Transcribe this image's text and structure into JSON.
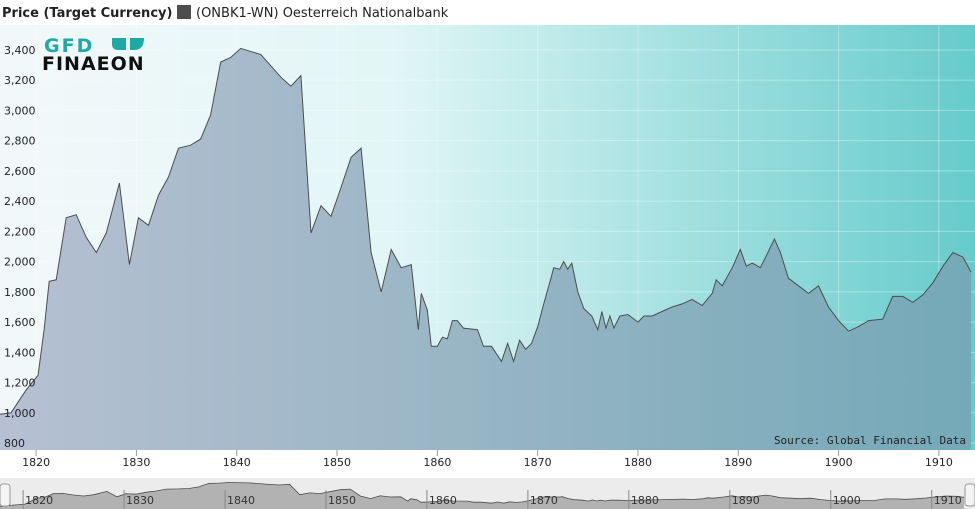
{
  "chart_data": {
    "type": "area",
    "title": "Price (Target Currency)",
    "source": "Source: Global Financial Data",
    "logo": {
      "top": "GFD",
      "bottom": "FINAEON"
    },
    "legend": "top-left",
    "grid": true,
    "xlim": [
      1816.4,
      1913.6
    ],
    "ylim": [
      754,
      3565
    ],
    "xticks": [
      1820,
      1830,
      1840,
      1850,
      1860,
      1870,
      1880,
      1890,
      1900,
      1910
    ],
    "yticks": [
      800,
      {
        "value": 1000,
        "label": "1,000"
      },
      {
        "value": 1200,
        "label": "1,200"
      },
      {
        "value": 1400,
        "label": "1,400"
      },
      {
        "value": 1600,
        "label": "1,600"
      },
      {
        "value": 1800,
        "label": "1,800"
      },
      {
        "value": 2000,
        "label": "2,000"
      },
      {
        "value": 2200,
        "label": "2,200"
      },
      {
        "value": 2400,
        "label": "2,400"
      },
      {
        "value": 2600,
        "label": "2,600"
      },
      {
        "value": 2800,
        "label": "2,800"
      },
      {
        "value": 3000,
        "label": "3,000"
      },
      {
        "value": 3200,
        "label": "3,200"
      },
      {
        "value": 3400,
        "label": "3,400"
      }
    ],
    "navigator_xlim": [
      1818.9,
      1913.1
    ],
    "x": [
      1816.4,
      1817.5,
      1818,
      1819,
      1820.2,
      1820.8,
      1821.3,
      1822,
      1823,
      1824,
      1825,
      1826,
      1827,
      1828.3,
      1829.3,
      1830.2,
      1831.2,
      1832.2,
      1833.2,
      1834.2,
      1835.4,
      1836.4,
      1837.4,
      1838.4,
      1839.4,
      1840.4,
      1842.4,
      1844.4,
      1845.4,
      1846.4,
      1847.4,
      1848.4,
      1849.4,
      1850.4,
      1851.4,
      1852.4,
      1853.4,
      1854.4,
      1855.4,
      1856.4,
      1857.4,
      1858.1,
      1858.4,
      1859,
      1859.4,
      1860,
      1860.5,
      1861,
      1861.5,
      1862,
      1862.6,
      1864,
      1864.6,
      1865.4,
      1866.4,
      1867,
      1867.6,
      1868.2,
      1868.8,
      1869.4,
      1870,
      1870.6,
      1871.2,
      1871.6,
      1872.2,
      1872.6,
      1873,
      1873.4,
      1874,
      1874.6,
      1875.4,
      1876,
      1876.4,
      1876.8,
      1877.2,
      1877.6,
      1878.2,
      1879,
      1880,
      1880.6,
      1881.4,
      1882.4,
      1883.4,
      1884.4,
      1885.4,
      1886.4,
      1887.4,
      1887.8,
      1888.4,
      1889.4,
      1890.2,
      1890.8,
      1891.4,
      1892.2,
      1892.8,
      1893.6,
      1894.2,
      1895,
      1896,
      1897,
      1898,
      1899,
      1900,
      1901,
      1902,
      1903,
      1904.4,
      1905.4,
      1906.4,
      1907.4,
      1908.4,
      1909.4,
      1910.4,
      1911.4,
      1912.4,
      1913.2
    ],
    "series": [
      {
        "name": "(ONBK1-WN) Oesterreich Nationalbank",
        "color": "#4d4d4d",
        "values": [
          990,
          1000,
          1050,
          1150,
          1250,
          1550,
          1870,
          1880,
          2290,
          2310,
          2160,
          2060,
          2190,
          2520,
          1980,
          2290,
          2240,
          2440,
          2560,
          2750,
          2770,
          2810,
          2970,
          3320,
          3350,
          3410,
          3370,
          3220,
          3160,
          3230,
          2190,
          2370,
          2300,
          2490,
          2690,
          2750,
          2060,
          1800,
          2080,
          1960,
          1980,
          1550,
          1790,
          1680,
          1440,
          1440,
          1500,
          1490,
          1610,
          1610,
          1560,
          1550,
          1440,
          1440,
          1340,
          1460,
          1340,
          1480,
          1420,
          1460,
          1570,
          1720,
          1860,
          1960,
          1950,
          2000,
          1950,
          1990,
          1800,
          1690,
          1640,
          1550,
          1670,
          1560,
          1640,
          1560,
          1640,
          1650,
          1600,
          1640,
          1640,
          1670,
          1700,
          1720,
          1750,
          1710,
          1790,
          1880,
          1840,
          1960,
          2080,
          1970,
          1990,
          1960,
          2040,
          2150,
          2060,
          1890,
          1840,
          1790,
          1840,
          1700,
          1610,
          1540,
          1570,
          1610,
          1620,
          1770,
          1770,
          1730,
          1780,
          1860,
          1970,
          2060,
          2030,
          1930
        ]
      }
    ]
  }
}
